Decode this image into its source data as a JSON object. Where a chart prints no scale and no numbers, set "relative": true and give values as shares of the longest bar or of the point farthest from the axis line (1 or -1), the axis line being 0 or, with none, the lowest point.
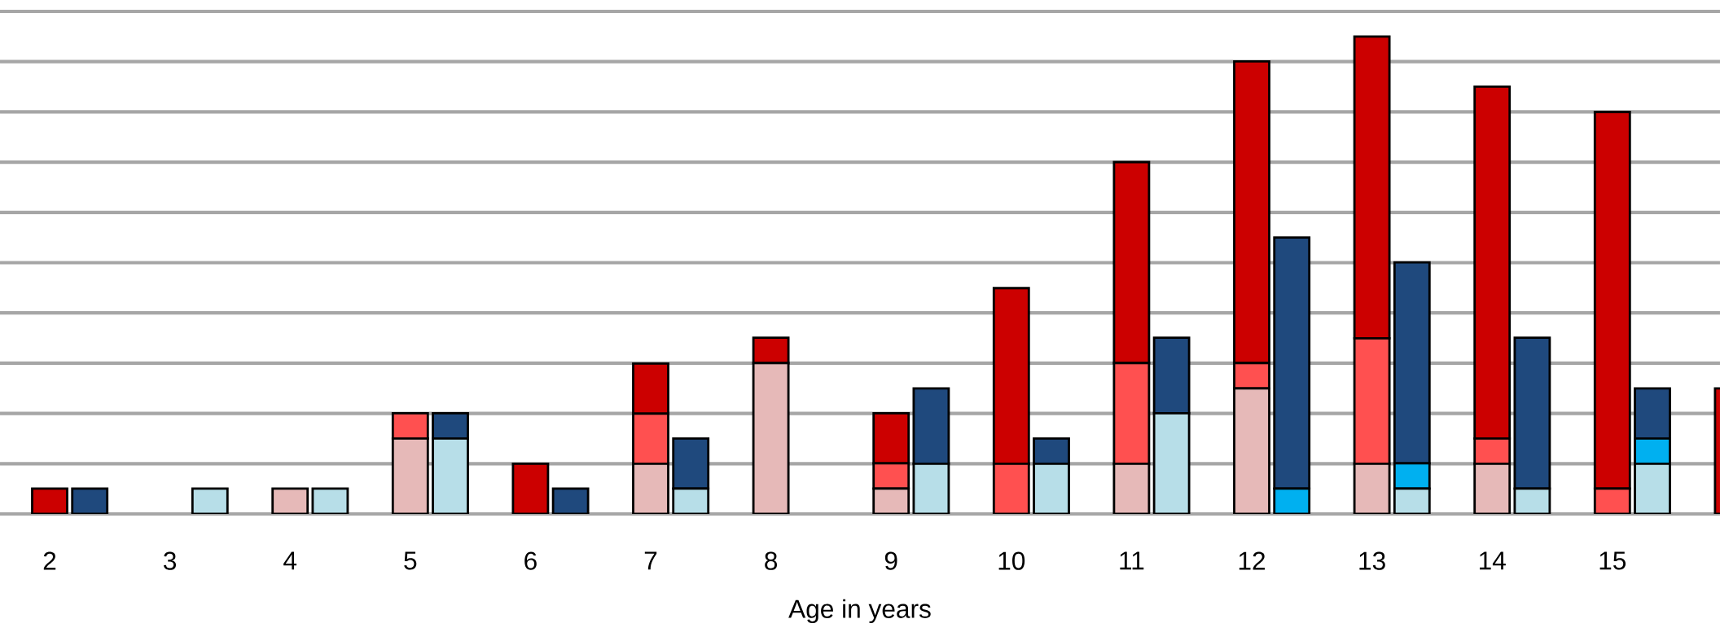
{
  "chart_data": {
    "type": "bar",
    "stacked": true,
    "relative": true,
    "grid": "y",
    "xlabel": "Age in years",
    "categories": [
      "2",
      null,
      null,
      "3",
      null,
      null,
      "4",
      null,
      null,
      "5",
      null,
      null,
      "6",
      null,
      null,
      "7",
      null,
      null,
      "8",
      null,
      null,
      "9",
      null,
      null,
      "10",
      null,
      null,
      "11",
      null,
      null,
      "12",
      null,
      null,
      "13",
      null,
      null,
      "14",
      null,
      null,
      "15",
      null,
      null,
      null
    ],
    "series": [
      {
        "color": "#e6b9b8",
        "values": [
          0,
          null,
          null,
          0,
          null,
          null,
          0.053,
          null,
          null,
          0.158,
          null,
          null,
          0,
          null,
          null,
          0.105,
          null,
          null,
          0.316,
          null,
          null,
          0.053,
          null,
          null,
          0,
          null,
          null,
          0.105,
          null,
          null,
          0.263,
          null,
          null,
          0.105,
          null,
          null,
          0.105,
          null,
          null,
          0,
          null,
          null,
          0
        ]
      },
      {
        "color": "#ff5050",
        "values": [
          0,
          null,
          null,
          0,
          null,
          null,
          0,
          null,
          null,
          0.053,
          null,
          null,
          0,
          null,
          null,
          0.105,
          null,
          null,
          0,
          null,
          null,
          0.053,
          null,
          null,
          0.105,
          null,
          null,
          0.211,
          null,
          null,
          0.053,
          null,
          null,
          0.263,
          null,
          null,
          0.053,
          null,
          null,
          0.053,
          null,
          null,
          0
        ]
      },
      {
        "color": "#cc0000",
        "values": [
          0.053,
          null,
          null,
          0,
          null,
          null,
          0,
          null,
          null,
          0,
          null,
          null,
          0.105,
          null,
          null,
          0.105,
          null,
          null,
          0.053,
          null,
          null,
          0.105,
          null,
          null,
          0.368,
          null,
          null,
          0.421,
          null,
          null,
          0.632,
          null,
          null,
          0.632,
          null,
          null,
          0.737,
          null,
          null,
          0.789,
          null,
          null,
          0.263
        ]
      },
      {
        "color": "#b7dee8",
        "values": [
          null,
          0,
          null,
          null,
          0.053,
          null,
          null,
          0.053,
          null,
          null,
          0.158,
          null,
          null,
          0,
          null,
          null,
          0.053,
          null,
          null,
          0,
          null,
          null,
          0.105,
          null,
          null,
          0.105,
          null,
          null,
          0.211,
          null,
          null,
          0,
          null,
          null,
          0.053,
          null,
          null,
          0.053,
          null,
          null,
          0.105,
          null,
          null
        ]
      },
      {
        "color": "#00b0f0",
        "values": [
          null,
          0,
          null,
          null,
          0,
          null,
          null,
          0,
          null,
          null,
          0,
          null,
          null,
          0,
          null,
          null,
          0,
          null,
          null,
          0,
          null,
          null,
          0,
          null,
          null,
          0,
          null,
          null,
          0,
          null,
          null,
          0.053,
          null,
          null,
          0.053,
          null,
          null,
          0,
          null,
          null,
          0.053,
          null,
          null
        ]
      },
      {
        "color": "#1f497d",
        "values": [
          null,
          0.053,
          null,
          null,
          0,
          null,
          null,
          0,
          null,
          null,
          0.053,
          null,
          null,
          0.053,
          null,
          null,
          0.105,
          null,
          null,
          0,
          null,
          null,
          0.158,
          null,
          null,
          0.053,
          null,
          null,
          0.158,
          null,
          null,
          0.526,
          null,
          null,
          0.421,
          null,
          null,
          0.316,
          null,
          null,
          0.105,
          null,
          null
        ]
      }
    ]
  }
}
